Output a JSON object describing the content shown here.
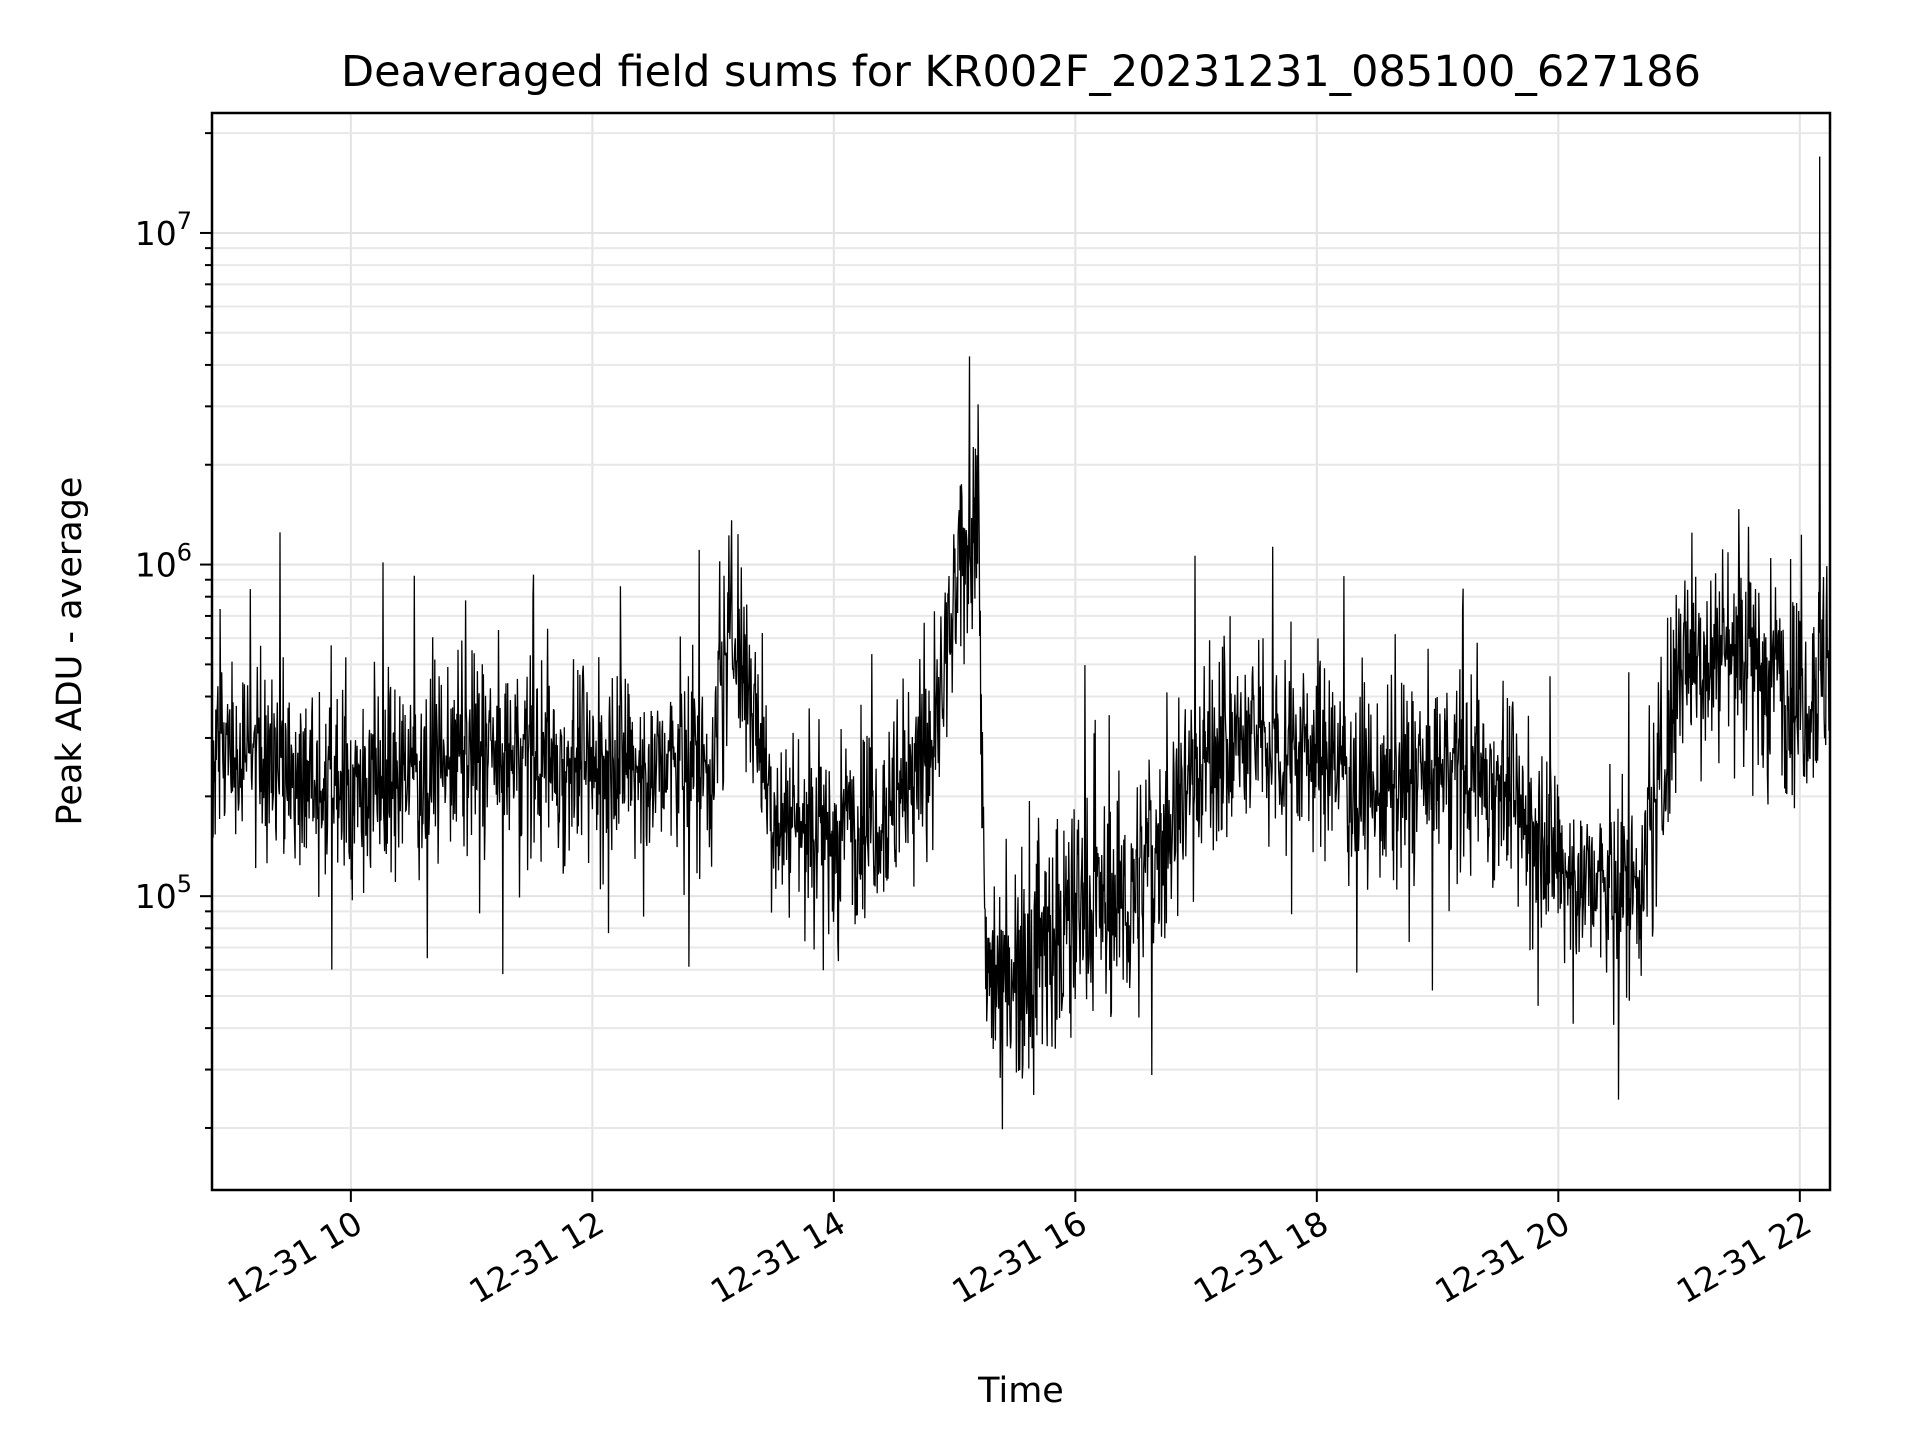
{
  "chart_data": {
    "type": "line",
    "title": "Deaveraged field sums for KR002F_20231231_085100_627186",
    "xlabel": "Time",
    "ylabel": "Peak ADU - average",
    "x_axis": {
      "kind": "time",
      "range": [
        "2023-12-31 08:51",
        "2023-12-31 22:15"
      ],
      "tick_labels": [
        "12-31 10",
        "12-31 12",
        "12-31 14",
        "12-31 16",
        "12-31 18",
        "12-31 20",
        "12-31 22"
      ],
      "tick_hours": [
        10,
        12,
        14,
        16,
        18,
        20,
        22
      ]
    },
    "y_axis": {
      "scale": "log",
      "range": [
        13000,
        23000000
      ],
      "major_ticks": [
        100000,
        1000000,
        10000000
      ],
      "tick_labels": [
        {
          "base": "10",
          "exp": "5"
        },
        {
          "base": "10",
          "exp": "6"
        },
        {
          "base": "10",
          "exp": "7"
        }
      ]
    },
    "grid": true,
    "line_color": "#000000",
    "series": [
      {
        "points": [
          [
            "2023-12-31 08:51",
            300000
          ],
          [
            "2023-12-31 09:30",
            230000
          ],
          [
            "2023-12-31 10:00",
            210000
          ],
          [
            "2023-12-31 10:30",
            240000
          ],
          [
            "2023-12-31 11:00",
            270000
          ],
          [
            "2023-12-31 11:30",
            260000
          ],
          [
            "2023-12-31 12:00",
            250000
          ],
          [
            "2023-12-31 12:30",
            240000
          ],
          [
            "2023-12-31 13:00",
            260000
          ],
          [
            "2023-12-31 13:10",
            700000
          ],
          [
            "2023-12-31 13:30",
            180000
          ],
          [
            "2023-12-31 14:00",
            160000
          ],
          [
            "2023-12-31 14:30",
            190000
          ],
          [
            "2023-12-31 14:50",
            300000
          ],
          [
            "2023-12-31 15:05",
            1100000
          ],
          [
            "2023-12-31 15:12",
            1700000
          ],
          [
            "2023-12-31 15:15",
            60000
          ],
          [
            "2023-12-31 15:45",
            70000
          ],
          [
            "2023-12-31 16:00",
            90000
          ],
          [
            "2023-12-31 16:30",
            100000
          ],
          [
            "2023-12-31 17:00",
            250000
          ],
          [
            "2023-12-31 17:30",
            300000
          ],
          [
            "2023-12-31 18:00",
            280000
          ],
          [
            "2023-12-31 18:30",
            200000
          ],
          [
            "2023-12-31 19:00",
            240000
          ],
          [
            "2023-12-31 19:30",
            230000
          ],
          [
            "2023-12-31 20:00",
            120000
          ],
          [
            "2023-12-31 20:30",
            100000
          ],
          [
            "2023-12-31 20:45",
            130000
          ],
          [
            "2023-12-31 21:00",
            500000
          ],
          [
            "2023-12-31 21:30",
            600000
          ],
          [
            "2023-12-31 22:00",
            400000
          ],
          [
            "2023-12-31 22:15",
            500000
          ]
        ],
        "peak": {
          "x": "2023-12-31 22:10",
          "y": 17000000
        }
      }
    ]
  }
}
